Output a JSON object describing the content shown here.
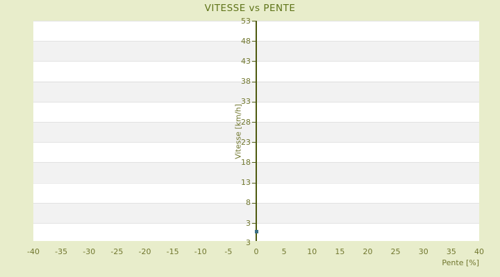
{
  "title": "VITESSE vs PENTE",
  "chart_data": {
    "type": "scatter",
    "title": "VITESSE vs PENTE",
    "xlabel": "Pente [%]",
    "ylabel": "Vitesse [km/h]",
    "x_ticks": [
      "-40",
      "-35",
      "-30",
      "-25",
      "-20",
      "-15",
      "-10",
      "-5",
      "0",
      "5",
      "10",
      "15",
      "20",
      "25",
      "30",
      "35",
      "40"
    ],
    "y_ticks": [
      "53",
      "48",
      "43",
      "38",
      "33",
      "28",
      "23",
      "18",
      "13",
      "8",
      "3"
    ],
    "y_axis_bottom_label": "3",
    "xlim": [
      -40,
      40
    ],
    "ylim": [
      -2,
      53
    ],
    "grid": "horizontal-only",
    "legend": "none",
    "zero_axis": "vertical olive line at Pente = 0",
    "series": [
      {
        "name": "vitesse",
        "marker": "square",
        "color": "#3b6e82",
        "points": [
          [
            0,
            0.8
          ]
        ]
      }
    ]
  },
  "colors": {
    "background": "#e8edcb",
    "band_light": "#ffffff",
    "band_dark": "#f2f2f2",
    "gridline": "#e2e2e2",
    "axis_line": "#4d590e",
    "tick_text": "#70762e",
    "title_text": "#5e7318",
    "point": "#3b6e82"
  }
}
